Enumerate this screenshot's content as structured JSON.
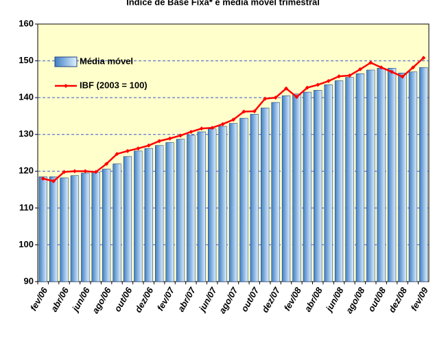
{
  "chart_data": {
    "type": "bar",
    "title": "Índice de Base Fixa* e média móvel trimestral",
    "categories": [
      "fev/06",
      null,
      "abr/06",
      null,
      "jun/06",
      null,
      "ago/06",
      null,
      "out/06",
      null,
      "dez/06",
      null,
      "fev/07",
      null,
      "abr/07",
      null,
      "jun/07",
      null,
      "ago/07",
      null,
      "out/07",
      null,
      "dez/07",
      null,
      "fev/08",
      null,
      "abr/08",
      null,
      "jun/08",
      null,
      "ago/08",
      null,
      "out/08",
      null,
      "dez/08",
      null,
      "fev/09"
    ],
    "series": [
      {
        "name": "Média móvel",
        "type": "bar",
        "color": "#3f7fc4",
        "values": [
          118.5,
          118.5,
          118.2,
          118.8,
          119.5,
          119.8,
          120.6,
          122,
          124,
          125.5,
          126.2,
          127,
          127.8,
          128.7,
          129.8,
          130.7,
          131.5,
          132.2,
          133,
          134.4,
          135.5,
          137.2,
          138.7,
          140.5,
          141,
          141.5,
          142,
          143.5,
          144.6,
          145.5,
          146.5,
          147.5,
          148,
          148,
          146.7,
          147,
          148.2
        ]
      },
      {
        "name": "IBF (2003 = 100)",
        "type": "line",
        "color": "#ff0000",
        "values": [
          118,
          117.3,
          119.8,
          120,
          120,
          119.8,
          122,
          124.7,
          125.5,
          126.2,
          127,
          128.2,
          128.9,
          129.7,
          130.7,
          131.6,
          131.8,
          132.8,
          134,
          136.2,
          136.3,
          139.7,
          140,
          142.5,
          140.2,
          142.7,
          143.5,
          144.5,
          145.8,
          146,
          147.7,
          149.5,
          148.2,
          147,
          145.7,
          148.2,
          150.8
        ]
      }
    ],
    "ylim": [
      90,
      160
    ],
    "yticks": [
      90,
      100,
      110,
      120,
      130,
      140,
      150,
      160
    ],
    "grid": true,
    "legend": "upper left"
  }
}
